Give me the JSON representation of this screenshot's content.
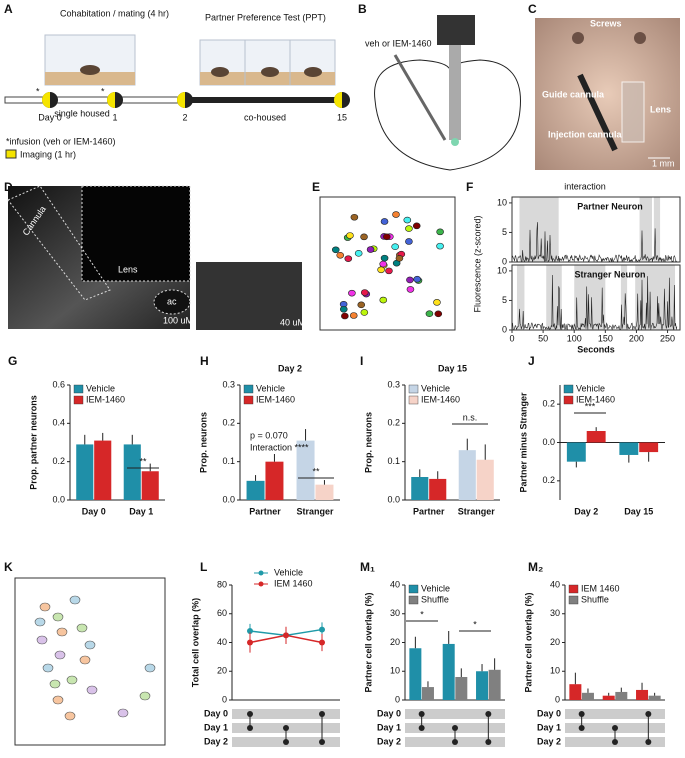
{
  "panels": {
    "a": "A",
    "b": "B",
    "c": "C",
    "d": "D",
    "e": "E",
    "f": "F",
    "k": "K"
  },
  "panel_a": {
    "cohab": "Cohabitation / mating (4 hr)",
    "ppt": "Partner Preference Test (PPT)",
    "day0": "Day 0",
    "single": "single housed",
    "day1": "1",
    "day2": "2",
    "cohoused": "co-housed",
    "day15": "15",
    "infusion": "*infusion (veh or IEM-1460)",
    "imaging": "Imaging (1 hr)",
    "star": "*"
  },
  "panel_b": {
    "drug": "veh or IEM-1460"
  },
  "panel_c": {
    "screws": "Screws",
    "guide": "Guide cannula",
    "lens": "Lens",
    "injection": "Injection cannula",
    "scale": "1 mm"
  },
  "panel_d": {
    "cannula": "Cannula",
    "lens": "Lens",
    "ac": "ac",
    "scale1": "100 uM",
    "scale2": "40 uM"
  },
  "panel_f": {
    "interaction": "interaction",
    "partner": "Partner Neuron",
    "stranger": "Stranger Neuron",
    "ylabel": "Fluorescence (z-scored)",
    "xlabel": "Seconds",
    "xlim": [
      0,
      270
    ],
    "xticks": [
      0,
      50,
      100,
      150,
      200,
      250
    ],
    "ylim": [
      0,
      11
    ],
    "yticks": [
      0,
      5,
      10
    ]
  },
  "chart_data": [
    {
      "type": "bar",
      "panel": "G",
      "ylabel": "Prop. partner neurons",
      "categories": [
        "Day 0",
        "Day 1"
      ],
      "series": [
        {
          "name": "Vehicle",
          "color": "#1f8fa8",
          "values": [
            0.29,
            0.29
          ],
          "errors": [
            0.05,
            0.05
          ]
        },
        {
          "name": "IEM-1460",
          "color": "#d62728",
          "values": [
            0.31,
            0.15
          ],
          "errors": [
            0.04,
            0.04
          ]
        }
      ],
      "ylim": [
        0,
        0.6
      ],
      "yticks": [
        {
          "value": 0,
          "label": "0.0"
        },
        0.2,
        0.4,
        0.6
      ],
      "annotations": [
        "**"
      ]
    },
    {
      "type": "bar",
      "panel": "H",
      "title": "Day 2",
      "ylabel": "Prop. neurons",
      "categories": [
        "Partner",
        "Stranger"
      ],
      "series": [
        {
          "name": "Vehicle",
          "color": "#1f8fa8",
          "colors": [
            "#1f8fa8",
            "#c5d5e6"
          ],
          "values": [
            0.05,
            0.155
          ],
          "errors": [
            0.015,
            0.03
          ]
        },
        {
          "name": "IEM-1460",
          "color": "#d62728",
          "colors": [
            "#d62728",
            "#f6d3c8"
          ],
          "values": [
            0.1,
            0.04
          ],
          "errors": [
            0.02,
            0.012
          ]
        }
      ],
      "ylim": [
        0,
        0.3
      ],
      "yticks": [
        {
          "value": 0,
          "label": "0.0"
        },
        0.1,
        0.2,
        0.3
      ],
      "annotations": [
        "p = 0.070",
        "Interaction ****",
        "**"
      ]
    },
    {
      "type": "bar",
      "panel": "I",
      "title": "Day 15",
      "ylabel": "Prop. neurons",
      "categories": [
        "Partner",
        "Stranger"
      ],
      "series": [
        {
          "name": "Vehicle",
          "color": "#c5d5e6",
          "colors": [
            "#1f8fa8",
            "#c5d5e6"
          ],
          "values": [
            0.06,
            0.13
          ],
          "errors": [
            0.02,
            0.03
          ]
        },
        {
          "name": "IEM-1460",
          "color": "#f6d3c8",
          "colors": [
            "#d62728",
            "#f6d3c8"
          ],
          "values": [
            0.055,
            0.105
          ],
          "errors": [
            0.02,
            0.04
          ]
        }
      ],
      "ylim": [
        0,
        0.3
      ],
      "yticks": [
        {
          "value": 0,
          "label": "0.0"
        },
        0.1,
        0.2,
        0.3
      ],
      "annotations": [
        "n.s."
      ]
    },
    {
      "type": "bar",
      "panel": "J",
      "ylabel": "Partner minus Stranger",
      "categories": [
        "Day 2",
        "Day 15"
      ],
      "series": [
        {
          "name": "Vehicle",
          "color": "#1f8fa8",
          "values": [
            -0.1,
            -0.065
          ],
          "errors": [
            0.03,
            0.04
          ]
        },
        {
          "name": "IEM-1460",
          "color": "#d62728",
          "values": [
            0.06,
            -0.05
          ],
          "errors": [
            0.02,
            0.05
          ]
        }
      ],
      "ylim": [
        -0.3,
        0.3
      ],
      "yticks": [
        {
          "value": -0.2,
          "label": "0.2"
        },
        {
          "value": 0,
          "label": "0.0"
        },
        0.2
      ],
      "annotations": [
        "***"
      ]
    },
    {
      "type": "line",
      "ylabel": "Total cell overlap (%)",
      "panel": "L",
      "categories": [
        null,
        null,
        null
      ],
      "series": [
        {
          "name": "Vehicle",
          "color": "#1f9aa8",
          "values": [
            48,
            45,
            49
          ],
          "errors": [
            5,
            5,
            5
          ]
        },
        {
          "name": "IEM 1460",
          "color": "#d62728",
          "values": [
            40,
            45,
            40
          ],
          "errors": [
            7,
            6,
            6
          ]
        }
      ],
      "ylim": [
        0,
        80
      ],
      "yticks": [
        0,
        20,
        40,
        60,
        80
      ],
      "matrix_rows": [
        "Day 0",
        "Day 1",
        "Day 2"
      ]
    },
    {
      "type": "bar",
      "panel": "M₁",
      "ylabel": "Partner cell overlap (%)",
      "categories": [
        null,
        null,
        null
      ],
      "series": [
        {
          "name": "Vehicle",
          "color": "#1f8fa8",
          "values": [
            18,
            19.5,
            10
          ],
          "errors": [
            4,
            4.5,
            2.5
          ]
        },
        {
          "name": "Shuffle",
          "color": "#808080",
          "values": [
            4.5,
            8,
            10.5
          ],
          "errors": [
            2,
            3,
            4
          ]
        }
      ],
      "ylim": [
        0,
        40
      ],
      "yticks": [
        0,
        10,
        20,
        30,
        40
      ],
      "annotations": [
        "*",
        "*"
      ],
      "matrix_rows": [
        "Day 0",
        "Day 1",
        "Day 2"
      ]
    },
    {
      "type": "bar",
      "panel": "M₂",
      "ylabel": "Partner cell overlap (%)",
      "categories": [
        null,
        null,
        null
      ],
      "series": [
        {
          "name": "IEM 1460",
          "color": "#d62728",
          "values": [
            5.5,
            1.5,
            3.5
          ],
          "errors": [
            4,
            1,
            2.5
          ]
        },
        {
          "name": "Shuffle",
          "color": "#808080",
          "values": [
            2.5,
            2.8,
            1.5
          ],
          "errors": [
            1.5,
            1.5,
            1
          ]
        }
      ],
      "ylim": [
        0,
        40
      ],
      "yticks": [
        0,
        10,
        20,
        30,
        40
      ],
      "matrix_rows": [
        "Day 0",
        "Day 1",
        "Day 2"
      ]
    }
  ]
}
